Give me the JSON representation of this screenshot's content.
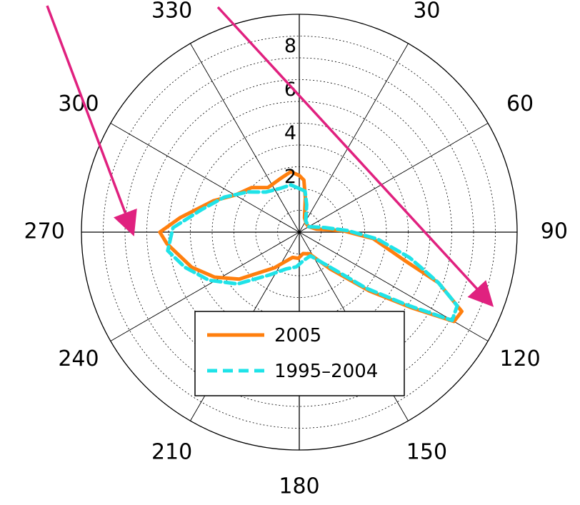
{
  "chart_data": {
    "type": "polar-line",
    "title": "",
    "angle_unit": "degrees",
    "angle_zero": "top",
    "angle_direction": "clockwise",
    "angle_ticks": [
      "30",
      "60",
      "90",
      "120",
      "150",
      "180",
      "210",
      "240",
      "270",
      "300",
      "330"
    ],
    "angle_tick_values": [
      30,
      60,
      90,
      120,
      150,
      180,
      210,
      240,
      270,
      300,
      330
    ],
    "radial_ticks": [
      "2",
      "4",
      "6",
      "8"
    ],
    "radial_tick_values": [
      2,
      4,
      6,
      8
    ],
    "r_max": 10,
    "grid": true,
    "legend_position": "bottom-center",
    "series": [
      {
        "name": "2005",
        "color": "#ff7f0e",
        "style": "solid",
        "points": [
          {
            "theta": 0,
            "r": 2.6
          },
          {
            "theta": 5,
            "r": 2.4
          },
          {
            "theta": 10,
            "r": 1.6
          },
          {
            "theta": 20,
            "r": 0.7
          },
          {
            "theta": 40,
            "r": 0.5
          },
          {
            "theta": 60,
            "r": 0.5
          },
          {
            "theta": 80,
            "r": 0.8
          },
          {
            "theta": 88,
            "r": 2.0
          },
          {
            "theta": 95,
            "r": 3.4
          },
          {
            "theta": 105,
            "r": 5.0
          },
          {
            "theta": 110,
            "r": 6.8
          },
          {
            "theta": 116,
            "r": 8.3
          },
          {
            "theta": 120,
            "r": 8.2
          },
          {
            "theta": 124,
            "r": 6.2
          },
          {
            "theta": 130,
            "r": 4.2
          },
          {
            "theta": 140,
            "r": 2.2
          },
          {
            "theta": 155,
            "r": 1.1
          },
          {
            "theta": 170,
            "r": 1.0
          },
          {
            "theta": 182,
            "r": 1.2
          },
          {
            "theta": 195,
            "r": 1.2
          },
          {
            "theta": 215,
            "r": 2.0
          },
          {
            "theta": 232,
            "r": 3.5
          },
          {
            "theta": 242,
            "r": 4.4
          },
          {
            "theta": 252,
            "r": 5.2
          },
          {
            "theta": 265,
            "r": 6.1
          },
          {
            "theta": 270,
            "r": 6.4
          },
          {
            "theta": 277,
            "r": 5.5
          },
          {
            "theta": 290,
            "r": 4.2
          },
          {
            "theta": 300,
            "r": 3.4
          },
          {
            "theta": 313,
            "r": 3.0
          },
          {
            "theta": 325,
            "r": 2.5
          },
          {
            "theta": 340,
            "r": 2.6
          },
          {
            "theta": 352,
            "r": 2.8
          },
          {
            "theta": 0,
            "r": 2.6
          }
        ]
      },
      {
        "name": "1995–2004",
        "color": "#1fe3e8",
        "style": "dashed",
        "points": [
          {
            "theta": 0,
            "r": 2.0
          },
          {
            "theta": 8,
            "r": 1.9
          },
          {
            "theta": 15,
            "r": 1.3
          },
          {
            "theta": 30,
            "r": 0.6
          },
          {
            "theta": 60,
            "r": 0.5
          },
          {
            "theta": 80,
            "r": 1.2
          },
          {
            "theta": 88,
            "r": 2.2
          },
          {
            "theta": 95,
            "r": 3.6
          },
          {
            "theta": 103,
            "r": 5.2
          },
          {
            "theta": 110,
            "r": 6.8
          },
          {
            "theta": 115,
            "r": 8.0
          },
          {
            "theta": 120,
            "r": 8.1
          },
          {
            "theta": 124,
            "r": 6.0
          },
          {
            "theta": 130,
            "r": 4.0
          },
          {
            "theta": 140,
            "r": 2.0
          },
          {
            "theta": 155,
            "r": 1.2
          },
          {
            "theta": 170,
            "r": 1.3
          },
          {
            "theta": 185,
            "r": 1.6
          },
          {
            "theta": 200,
            "r": 1.8
          },
          {
            "theta": 215,
            "r": 2.4
          },
          {
            "theta": 230,
            "r": 3.7
          },
          {
            "theta": 242,
            "r": 4.7
          },
          {
            "theta": 253,
            "r": 5.5
          },
          {
            "theta": 262,
            "r": 6.1
          },
          {
            "theta": 272,
            "r": 5.8
          },
          {
            "theta": 283,
            "r": 4.6
          },
          {
            "theta": 295,
            "r": 3.8
          },
          {
            "theta": 308,
            "r": 3.0
          },
          {
            "theta": 320,
            "r": 2.4
          },
          {
            "theta": 335,
            "r": 2.2
          },
          {
            "theta": 350,
            "r": 2.2
          },
          {
            "theta": 0,
            "r": 2.0
          }
        ]
      }
    ]
  },
  "annotations": {
    "arrow_color": "#e0217f"
  }
}
